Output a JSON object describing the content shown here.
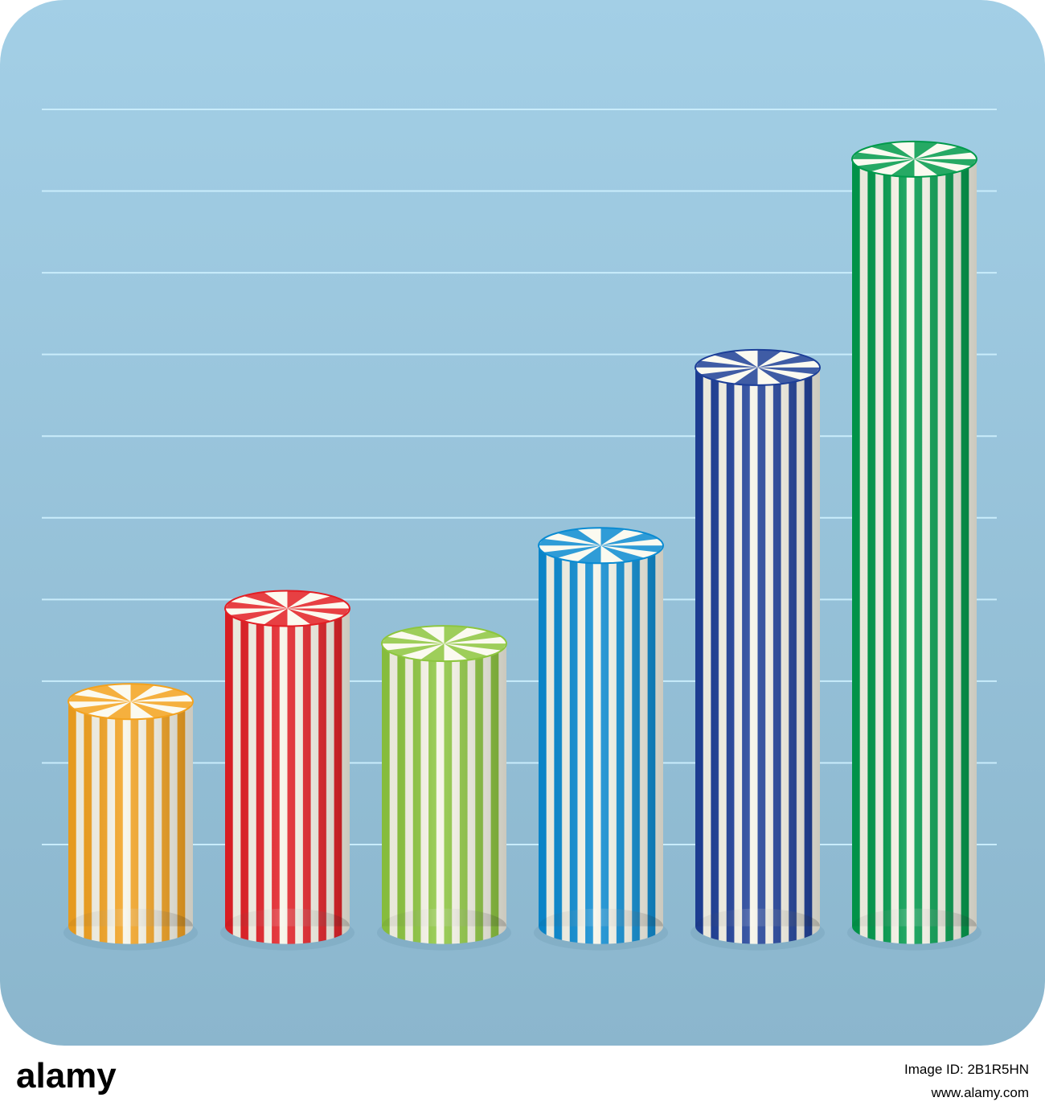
{
  "chart_data": {
    "type": "cylinder",
    "categories": [
      null,
      null,
      null,
      null,
      null,
      null
    ],
    "values": [
      2.75,
      3.89,
      3.46,
      4.66,
      6.84,
      9.39
    ],
    "colors": [
      "#f3a21f",
      "#e31e24",
      "#8dc63f",
      "#0a8bd2",
      "#1d3f98",
      "#009a4b"
    ],
    "ylim": [
      -0.2,
      11
    ],
    "yticks": [
      1,
      2,
      3,
      4,
      5,
      6,
      7,
      8,
      9,
      10
    ],
    "grid": true
  },
  "footer": {
    "brand": "alamy",
    "image_id": "Image ID: 2B1R5HN",
    "url": "www.alamy.com"
  }
}
